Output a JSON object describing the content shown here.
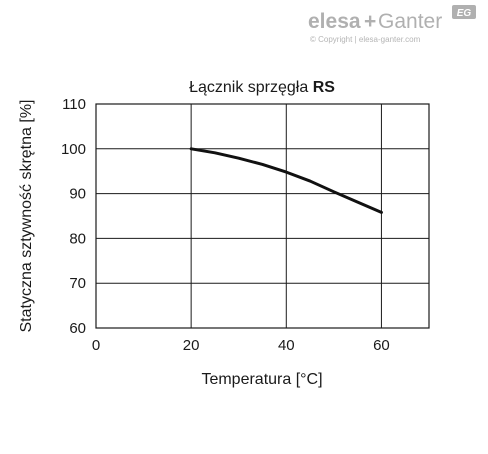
{
  "brand": {
    "name_left": "elesa",
    "name_right": "Ganter",
    "joiner": "+",
    "badge": "EG",
    "copyright": "© Copyright | elesa-ganter.com"
  },
  "chart_data": {
    "type": "line",
    "title": "Łącznik sprzęgła ",
    "title_bold": "RS",
    "xlabel": "Temperatura [°C]",
    "ylabel": "Statyczna sztywność skrętna [%]",
    "xlim": [
      0,
      70
    ],
    "ylim": [
      60,
      110
    ],
    "xticks": [
      0,
      20,
      40,
      60
    ],
    "yticks": [
      60,
      70,
      80,
      90,
      100,
      110
    ],
    "grid": true,
    "series": [
      {
        "x": [
          20,
          25,
          30,
          35,
          40,
          45,
          50,
          55,
          60
        ],
        "y": [
          100,
          99.1,
          97.9,
          96.5,
          94.8,
          92.8,
          90.4,
          88.1,
          85.8
        ],
        "color": "#111111"
      }
    ]
  }
}
